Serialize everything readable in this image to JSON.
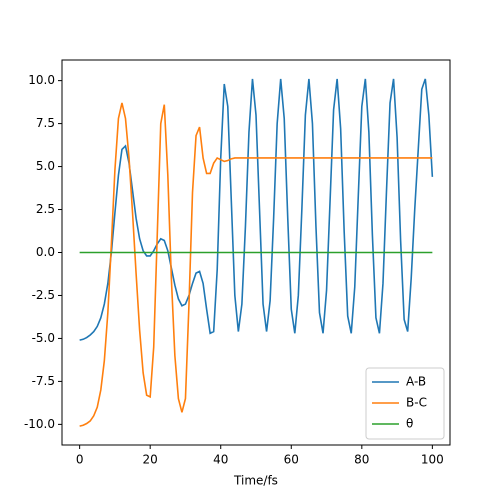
{
  "chart_data": {
    "type": "line",
    "xlabel": "Time/fs",
    "x": [
      0,
      1,
      2,
      3,
      4,
      5,
      6,
      7,
      8,
      9,
      10,
      11,
      12,
      13,
      14,
      15,
      16,
      17,
      18,
      19,
      20,
      21,
      22,
      23,
      24,
      25,
      26,
      27,
      28,
      29,
      30,
      31,
      32,
      33,
      34,
      35,
      36,
      37,
      38,
      39,
      40,
      41,
      42,
      43,
      44,
      45,
      46,
      47,
      48,
      49,
      50,
      51,
      52,
      53,
      54,
      55,
      56,
      57,
      58,
      59,
      60,
      61,
      62,
      63,
      64,
      65,
      66,
      67,
      68,
      69,
      70,
      71,
      72,
      73,
      74,
      75,
      76,
      77,
      78,
      79,
      80,
      81,
      82,
      83,
      84,
      85,
      86,
      87,
      88,
      89,
      90,
      91,
      92,
      93,
      94,
      95,
      96,
      97,
      98,
      99,
      100
    ],
    "series": [
      {
        "name": "A-B",
        "color": "#1f77b4",
        "values": [
          -5.1,
          -5.05,
          -4.95,
          -4.8,
          -4.6,
          -4.3,
          -3.8,
          -3.0,
          -1.8,
          0.0,
          2.3,
          4.5,
          6.0,
          6.2,
          5.2,
          3.6,
          2.0,
          0.8,
          0.1,
          -0.2,
          -0.2,
          0.1,
          0.5,
          0.8,
          0.7,
          0.1,
          -0.9,
          -1.9,
          -2.7,
          -3.1,
          -3.0,
          -2.5,
          -1.8,
          -1.2,
          -1.1,
          -1.8,
          -3.3,
          -4.7,
          -4.6,
          -1.0,
          5.5,
          9.8,
          8.5,
          3.0,
          -2.5,
          -4.6,
          -3.0,
          1.5,
          7.0,
          10.1,
          8.0,
          2.5,
          -3.0,
          -4.6,
          -2.8,
          2.0,
          7.5,
          10.1,
          7.8,
          2.0,
          -3.3,
          -4.7,
          -2.5,
          2.5,
          8.0,
          10.1,
          7.5,
          1.5,
          -3.5,
          -4.7,
          -2.2,
          3.0,
          8.3,
          10.1,
          7.2,
          1.2,
          -3.7,
          -4.7,
          -2.0,
          3.3,
          8.5,
          10.1,
          7.0,
          1.0,
          -3.8,
          -4.7,
          -1.8,
          3.6,
          8.7,
          10.1,
          6.7,
          0.7,
          -3.9,
          -4.6,
          -1.5,
          2.5,
          6.0,
          9.5,
          10.1,
          8.0,
          4.4
        ]
      },
      {
        "name": "B-C",
        "color": "#ff7f0e",
        "values": [
          -10.1,
          -10.05,
          -9.95,
          -9.8,
          -9.5,
          -9.0,
          -8.0,
          -6.3,
          -3.5,
          0.5,
          4.8,
          7.8,
          8.7,
          7.8,
          5.5,
          2.3,
          -1.2,
          -4.5,
          -7.0,
          -8.3,
          -8.4,
          -5.5,
          1.0,
          7.5,
          8.6,
          4.5,
          -1.5,
          -6.0,
          -8.5,
          -9.3,
          -8.5,
          -3.0,
          3.5,
          6.8,
          7.3,
          5.5,
          4.6,
          4.6,
          5.2,
          5.5,
          5.4,
          5.3,
          5.35,
          5.45,
          5.5,
          5.5,
          5.5,
          5.5,
          5.5,
          5.5,
          5.5,
          5.5,
          5.5,
          5.5,
          5.5,
          5.5,
          5.5,
          5.5,
          5.5,
          5.5,
          5.5,
          5.5,
          5.5,
          5.5,
          5.5,
          5.5,
          5.5,
          5.5,
          5.5,
          5.5,
          5.5,
          5.5,
          5.5,
          5.5,
          5.5,
          5.5,
          5.5,
          5.5,
          5.5,
          5.5,
          5.5,
          5.5,
          5.5,
          5.5,
          5.5,
          5.5,
          5.5,
          5.5,
          5.5,
          5.5,
          5.5,
          5.5,
          5.5,
          5.5,
          5.5,
          5.5,
          5.5,
          5.5,
          5.5,
          5.5,
          5.5
        ]
      },
      {
        "name": "θ",
        "color": "#2ca02c",
        "values": [
          0,
          0,
          0,
          0,
          0,
          0,
          0,
          0,
          0,
          0,
          0,
          0,
          0,
          0,
          0,
          0,
          0,
          0,
          0,
          0,
          0,
          0,
          0,
          0,
          0,
          0,
          0,
          0,
          0,
          0,
          0,
          0,
          0,
          0,
          0,
          0,
          0,
          0,
          0,
          0,
          0,
          0,
          0,
          0,
          0,
          0,
          0,
          0,
          0,
          0,
          0,
          0,
          0,
          0,
          0,
          0,
          0,
          0,
          0,
          0,
          0,
          0,
          0,
          0,
          0,
          0,
          0,
          0,
          0,
          0,
          0,
          0,
          0,
          0,
          0,
          0,
          0,
          0,
          0,
          0,
          0,
          0,
          0,
          0,
          0,
          0,
          0,
          0,
          0,
          0,
          0,
          0,
          0,
          0,
          0,
          0,
          0,
          0,
          0,
          0,
          0
        ]
      }
    ],
    "xlim": [
      -5,
      105
    ],
    "xticks": [
      0,
      20,
      40,
      60,
      80,
      100
    ],
    "ylim": [
      -11.2,
      11.2
    ],
    "yticks": [
      {
        "value": -10,
        "label": "-10.0"
      },
      -7.5,
      {
        "value": -5,
        "label": "-5.0"
      },
      -2.5,
      {
        "value": 0,
        "label": "0.0"
      },
      2.5,
      {
        "value": 5,
        "label": "5.0"
      },
      7.5,
      {
        "value": 10,
        "label": "10.0"
      }
    ],
    "legend": "lower right"
  }
}
